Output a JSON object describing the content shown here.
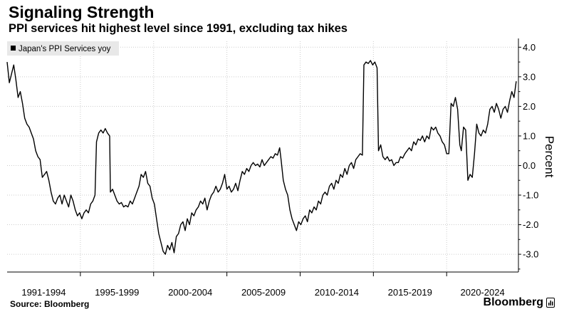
{
  "header": {
    "title": "Signaling Strength",
    "subtitle": "PPI services hit highest level since 1991, excluding tax hikes"
  },
  "footer": {
    "source": "Source: Bloomberg",
    "brand": "Bloomberg",
    "brand_icon": "bloomberg-terminal-icon"
  },
  "colors": {
    "line": "#000000",
    "grid": "#cccccc",
    "legend_bg": "#e8e8e8"
  },
  "chart_data": {
    "type": "line",
    "title": "Signaling Strength",
    "subtitle": "PPI services hit highest level since 1991, excluding tax hikes",
    "ylabel": "Percent",
    "ylim": [
      -3.6,
      4.2
    ],
    "yticks": [
      "4.0",
      "3.0",
      "2.0",
      "1.0",
      "0.0",
      "-1.0",
      "-2.0",
      "-3.0"
    ],
    "ytick_values": [
      4,
      3,
      2,
      1,
      0,
      -1,
      -2,
      -3
    ],
    "xlim": [
      1991.0,
      2025.9
    ],
    "x_periods": [
      {
        "label": "1991-1994",
        "start": 1991,
        "end": 1996
      },
      {
        "label": "1995-1999",
        "start": 1996,
        "end": 2001
      },
      {
        "label": "2000-2004",
        "start": 2001,
        "end": 2006
      },
      {
        "label": "2005-2009",
        "start": 2006,
        "end": 2011
      },
      {
        "label": "2010-2014",
        "start": 2011,
        "end": 2016
      },
      {
        "label": "2015-2019",
        "start": 2016,
        "end": 2021
      },
      {
        "label": "2020-2024",
        "start": 2021,
        "end": 2025.9
      }
    ],
    "grid": true,
    "legend_position": "top-left",
    "series": [
      {
        "name": "Japan's PPI Services yoy",
        "points": [
          [
            1991.0,
            3.5
          ],
          [
            1991.15,
            2.8
          ],
          [
            1991.3,
            3.1
          ],
          [
            1991.45,
            3.4
          ],
          [
            1991.6,
            2.9
          ],
          [
            1991.75,
            2.3
          ],
          [
            1991.9,
            2.5
          ],
          [
            1992.05,
            2.1
          ],
          [
            1992.2,
            1.6
          ],
          [
            1992.35,
            1.4
          ],
          [
            1992.5,
            1.3
          ],
          [
            1992.65,
            1.1
          ],
          [
            1992.8,
            0.9
          ],
          [
            1992.95,
            0.5
          ],
          [
            1993.1,
            0.3
          ],
          [
            1993.25,
            0.2
          ],
          [
            1993.4,
            -0.4
          ],
          [
            1993.55,
            -0.3
          ],
          [
            1993.7,
            -0.2
          ],
          [
            1993.85,
            -0.5
          ],
          [
            1994.0,
            -0.9
          ],
          [
            1994.15,
            -1.2
          ],
          [
            1994.3,
            -1.3
          ],
          [
            1994.45,
            -1.1
          ],
          [
            1994.6,
            -1.0
          ],
          [
            1994.75,
            -1.3
          ],
          [
            1994.9,
            -1.0
          ],
          [
            1995.05,
            -1.2
          ],
          [
            1995.2,
            -1.4
          ],
          [
            1995.35,
            -1.0
          ],
          [
            1995.5,
            -1.2
          ],
          [
            1995.65,
            -1.5
          ],
          [
            1995.8,
            -1.7
          ],
          [
            1995.95,
            -1.6
          ],
          [
            1996.1,
            -1.8
          ],
          [
            1996.25,
            -1.6
          ],
          [
            1996.4,
            -1.5
          ],
          [
            1996.55,
            -1.6
          ],
          [
            1996.7,
            -1.3
          ],
          [
            1996.85,
            -1.2
          ],
          [
            1997.0,
            -1.0
          ],
          [
            1997.1,
            0.8
          ],
          [
            1997.25,
            1.1
          ],
          [
            1997.4,
            1.2
          ],
          [
            1997.55,
            1.1
          ],
          [
            1997.7,
            1.25
          ],
          [
            1997.85,
            1.1
          ],
          [
            1998.0,
            1.0
          ],
          [
            1998.05,
            -0.9
          ],
          [
            1998.2,
            -0.8
          ],
          [
            1998.35,
            -1.0
          ],
          [
            1998.5,
            -1.2
          ],
          [
            1998.65,
            -1.3
          ],
          [
            1998.8,
            -1.25
          ],
          [
            1998.95,
            -1.4
          ],
          [
            1999.1,
            -1.35
          ],
          [
            1999.25,
            -1.4
          ],
          [
            1999.4,
            -1.2
          ],
          [
            1999.55,
            -1.3
          ],
          [
            1999.7,
            -1.1
          ],
          [
            1999.85,
            -0.9
          ],
          [
            2000.0,
            -0.7
          ],
          [
            2000.15,
            -0.3
          ],
          [
            2000.3,
            -0.4
          ],
          [
            2000.45,
            -0.2
          ],
          [
            2000.6,
            -0.6
          ],
          [
            2000.75,
            -0.7
          ],
          [
            2000.9,
            -1.1
          ],
          [
            2001.05,
            -1.3
          ],
          [
            2001.2,
            -1.8
          ],
          [
            2001.35,
            -2.3
          ],
          [
            2001.5,
            -2.6
          ],
          [
            2001.65,
            -2.9
          ],
          [
            2001.8,
            -3.0
          ],
          [
            2001.95,
            -2.7
          ],
          [
            2002.1,
            -2.85
          ],
          [
            2002.25,
            -2.6
          ],
          [
            2002.4,
            -2.95
          ],
          [
            2002.55,
            -2.4
          ],
          [
            2002.7,
            -2.3
          ],
          [
            2002.85,
            -2.0
          ],
          [
            2003.0,
            -1.9
          ],
          [
            2003.15,
            -2.2
          ],
          [
            2003.3,
            -1.8
          ],
          [
            2003.45,
            -2.0
          ],
          [
            2003.6,
            -1.6
          ],
          [
            2003.75,
            -1.7
          ],
          [
            2003.9,
            -1.5
          ],
          [
            2004.05,
            -1.4
          ],
          [
            2004.2,
            -1.2
          ],
          [
            2004.35,
            -1.3
          ],
          [
            2004.5,
            -1.1
          ],
          [
            2004.65,
            -1.5
          ],
          [
            2004.8,
            -1.2
          ],
          [
            2004.95,
            -1.0
          ],
          [
            2005.1,
            -0.9
          ],
          [
            2005.25,
            -0.7
          ],
          [
            2005.4,
            -0.9
          ],
          [
            2005.55,
            -0.8
          ],
          [
            2005.7,
            -0.6
          ],
          [
            2005.85,
            -0.3
          ],
          [
            2006.0,
            -0.8
          ],
          [
            2006.15,
            -0.7
          ],
          [
            2006.3,
            -0.9
          ],
          [
            2006.45,
            -0.8
          ],
          [
            2006.6,
            -0.6
          ],
          [
            2006.75,
            -0.85
          ],
          [
            2006.9,
            -0.5
          ],
          [
            2007.05,
            -0.2
          ],
          [
            2007.2,
            -0.3
          ],
          [
            2007.35,
            -0.1
          ],
          [
            2007.5,
            -0.2
          ],
          [
            2007.65,
            0.0
          ],
          [
            2007.8,
            0.1
          ],
          [
            2007.95,
            0.0
          ],
          [
            2008.1,
            0.05
          ],
          [
            2008.25,
            -0.05
          ],
          [
            2008.4,
            0.2
          ],
          [
            2008.55,
            0.0
          ],
          [
            2008.7,
            0.1
          ],
          [
            2008.85,
            0.2
          ],
          [
            2009.0,
            0.3
          ],
          [
            2009.15,
            0.25
          ],
          [
            2009.3,
            0.4
          ],
          [
            2009.45,
            0.35
          ],
          [
            2009.6,
            0.6
          ],
          [
            2009.7,
            0.2
          ],
          [
            2009.85,
            -0.5
          ],
          [
            2010.0,
            -0.8
          ],
          [
            2010.15,
            -1.0
          ],
          [
            2010.3,
            -1.5
          ],
          [
            2010.45,
            -1.8
          ],
          [
            2010.6,
            -2.0
          ],
          [
            2010.75,
            -2.2
          ],
          [
            2010.9,
            -1.9
          ],
          [
            2011.05,
            -2.0
          ],
          [
            2011.2,
            -1.8
          ],
          [
            2011.35,
            -1.7
          ],
          [
            2011.5,
            -1.9
          ],
          [
            2011.65,
            -1.5
          ],
          [
            2011.8,
            -1.6
          ],
          [
            2011.95,
            -1.4
          ],
          [
            2012.1,
            -1.5
          ],
          [
            2012.25,
            -1.2
          ],
          [
            2012.4,
            -1.3
          ],
          [
            2012.55,
            -1.0
          ],
          [
            2012.7,
            -0.9
          ],
          [
            2012.85,
            -1.0
          ],
          [
            2013.0,
            -0.7
          ],
          [
            2013.15,
            -0.6
          ],
          [
            2013.3,
            -0.8
          ],
          [
            2013.45,
            -0.5
          ],
          [
            2013.6,
            -0.6
          ],
          [
            2013.75,
            -0.3
          ],
          [
            2013.9,
            -0.4
          ],
          [
            2014.05,
            -0.1
          ],
          [
            2014.2,
            -0.3
          ],
          [
            2014.35,
            0.0
          ],
          [
            2014.5,
            0.1
          ],
          [
            2014.65,
            -0.1
          ],
          [
            2014.8,
            0.2
          ],
          [
            2014.95,
            0.3
          ],
          [
            2015.1,
            0.4
          ],
          [
            2015.25,
            0.35
          ],
          [
            2015.35,
            3.4
          ],
          [
            2015.5,
            3.5
          ],
          [
            2015.65,
            3.45
          ],
          [
            2015.8,
            3.55
          ],
          [
            2015.95,
            3.4
          ],
          [
            2016.1,
            3.5
          ],
          [
            2016.25,
            3.3
          ],
          [
            2016.35,
            0.5
          ],
          [
            2016.5,
            0.7
          ],
          [
            2016.65,
            0.3
          ],
          [
            2016.8,
            0.2
          ],
          [
            2016.95,
            0.3
          ],
          [
            2017.1,
            0.15
          ],
          [
            2017.25,
            0.2
          ],
          [
            2017.4,
            0.0
          ],
          [
            2017.55,
            0.1
          ],
          [
            2017.7,
            0.1
          ],
          [
            2017.85,
            0.3
          ],
          [
            2018.0,
            0.25
          ],
          [
            2018.15,
            0.4
          ],
          [
            2018.3,
            0.5
          ],
          [
            2018.45,
            0.6
          ],
          [
            2018.6,
            0.5
          ],
          [
            2018.75,
            0.8
          ],
          [
            2018.9,
            0.7
          ],
          [
            2019.05,
            0.9
          ],
          [
            2019.2,
            0.85
          ],
          [
            2019.35,
            1.0
          ],
          [
            2019.5,
            0.8
          ],
          [
            2019.65,
            1.0
          ],
          [
            2019.8,
            0.9
          ],
          [
            2019.95,
            1.3
          ],
          [
            2020.1,
            1.2
          ],
          [
            2020.25,
            1.3
          ],
          [
            2020.4,
            1.1
          ],
          [
            2020.55,
            1.0
          ],
          [
            2020.7,
            0.8
          ],
          [
            2020.85,
            0.7
          ],
          [
            2021.0,
            0.4
          ],
          [
            2021.15,
            0.4
          ],
          [
            2021.3,
            2.1
          ],
          [
            2021.45,
            2.0
          ],
          [
            2021.6,
            2.3
          ],
          [
            2021.75,
            1.9
          ],
          [
            2021.9,
            0.7
          ],
          [
            2022.0,
            0.5
          ],
          [
            2022.15,
            1.3
          ],
          [
            2022.3,
            1.2
          ],
          [
            2022.45,
            -0.5
          ],
          [
            2022.6,
            -0.3
          ],
          [
            2022.75,
            -0.4
          ],
          [
            2022.9,
            0.4
          ],
          [
            2023.05,
            1.4
          ],
          [
            2023.2,
            1.1
          ],
          [
            2023.35,
            1.0
          ],
          [
            2023.5,
            1.2
          ],
          [
            2023.65,
            1.1
          ],
          [
            2023.8,
            1.4
          ],
          [
            2023.95,
            1.9
          ],
          [
            2024.1,
            2.0
          ],
          [
            2024.25,
            1.8
          ],
          [
            2024.4,
            2.1
          ],
          [
            2024.55,
            1.9
          ],
          [
            2024.7,
            1.6
          ],
          [
            2024.85,
            1.9
          ],
          [
            2025.0,
            2.0
          ],
          [
            2025.15,
            1.8
          ],
          [
            2025.3,
            2.2
          ],
          [
            2025.45,
            2.5
          ],
          [
            2025.6,
            2.3
          ],
          [
            2025.75,
            2.85
          ]
        ]
      }
    ]
  }
}
